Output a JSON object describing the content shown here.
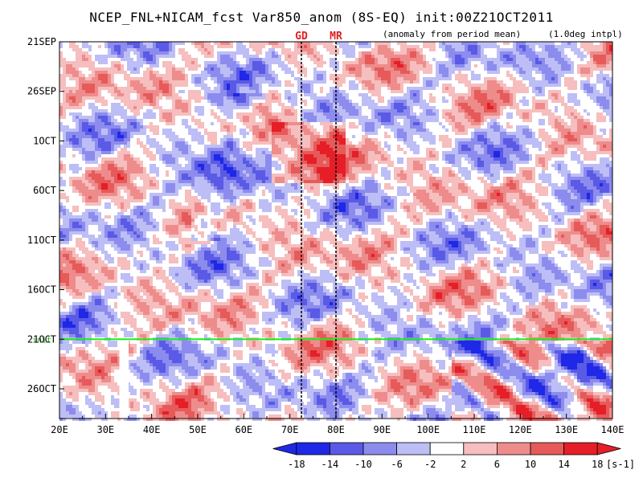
{
  "chart_data": {
    "type": "heatmap",
    "title": "NCEP_FNL+NICAM_fcst Var850_anom (8S-EQ) init:00Z21OCT2011",
    "subtitle_left": "(anomaly from period mean)",
    "subtitle_right": "(1.0deg intpl)",
    "x_ticks": [
      "20E",
      "30E",
      "40E",
      "50E",
      "60E",
      "70E",
      "80E",
      "90E",
      "100E",
      "110E",
      "120E",
      "130E",
      "140E"
    ],
    "x_tick_values": [
      20,
      30,
      40,
      50,
      60,
      70,
      80,
      90,
      100,
      110,
      120,
      130,
      140
    ],
    "xlim": [
      20,
      140
    ],
    "y_ticks": [
      "21SEP",
      "26SEP",
      "1OCT",
      "6OCT",
      "11OCT",
      "16OCT",
      "21OCT",
      "26OCT"
    ],
    "y_tick_days": [
      0,
      5,
      10,
      15,
      20,
      25,
      30,
      35
    ],
    "ylim_dates": [
      "21SEP",
      "29OCT"
    ],
    "init_line": {
      "date": "21OCT",
      "label": "init",
      "color": "#18ee18"
    },
    "markers": [
      {
        "label": "GD",
        "lon": 72.5
      },
      {
        "label": "MR",
        "lon": 80
      }
    ],
    "missing_band_lon": [
      33,
      35
    ],
    "missing_band_dates": [
      "21OCT",
      "29OCT"
    ],
    "colorbar": {
      "levels": [
        "-18",
        "-14",
        "-10",
        "-6",
        "-2",
        "2",
        "6",
        "10",
        "14",
        "18"
      ],
      "unit": "[s-1]",
      "colors": [
        "#1e28e6",
        "#5a5ae6",
        "#8c8cee",
        "#bebef6",
        "#ffffff",
        "#f6bebe",
        "#ee8c8c",
        "#e65a5a",
        "#e61e28"
      ]
    }
  }
}
